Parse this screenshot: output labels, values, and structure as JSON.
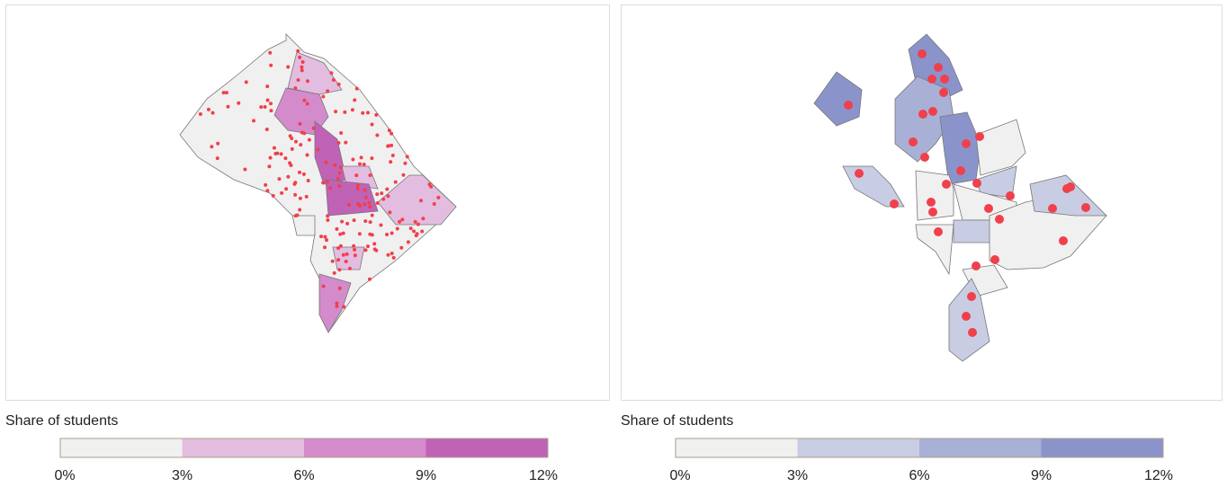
{
  "maps": [
    {
      "legend": {
        "title": "Share of students",
        "ticks": [
          "0%",
          "3%",
          "6%",
          "9%",
          "12%"
        ],
        "colors": [
          "#f0f0f0",
          "#e3bde0",
          "#d38bcb",
          "#c062b6"
        ]
      }
    },
    {
      "legend": {
        "title": "Share of students",
        "ticks": [
          "0%",
          "3%",
          "6%",
          "9%",
          "12%"
        ],
        "colors": [
          "#f0f0f0",
          "#c9cde4",
          "#a9b0d6",
          "#8a94cb"
        ]
      }
    }
  ]
}
